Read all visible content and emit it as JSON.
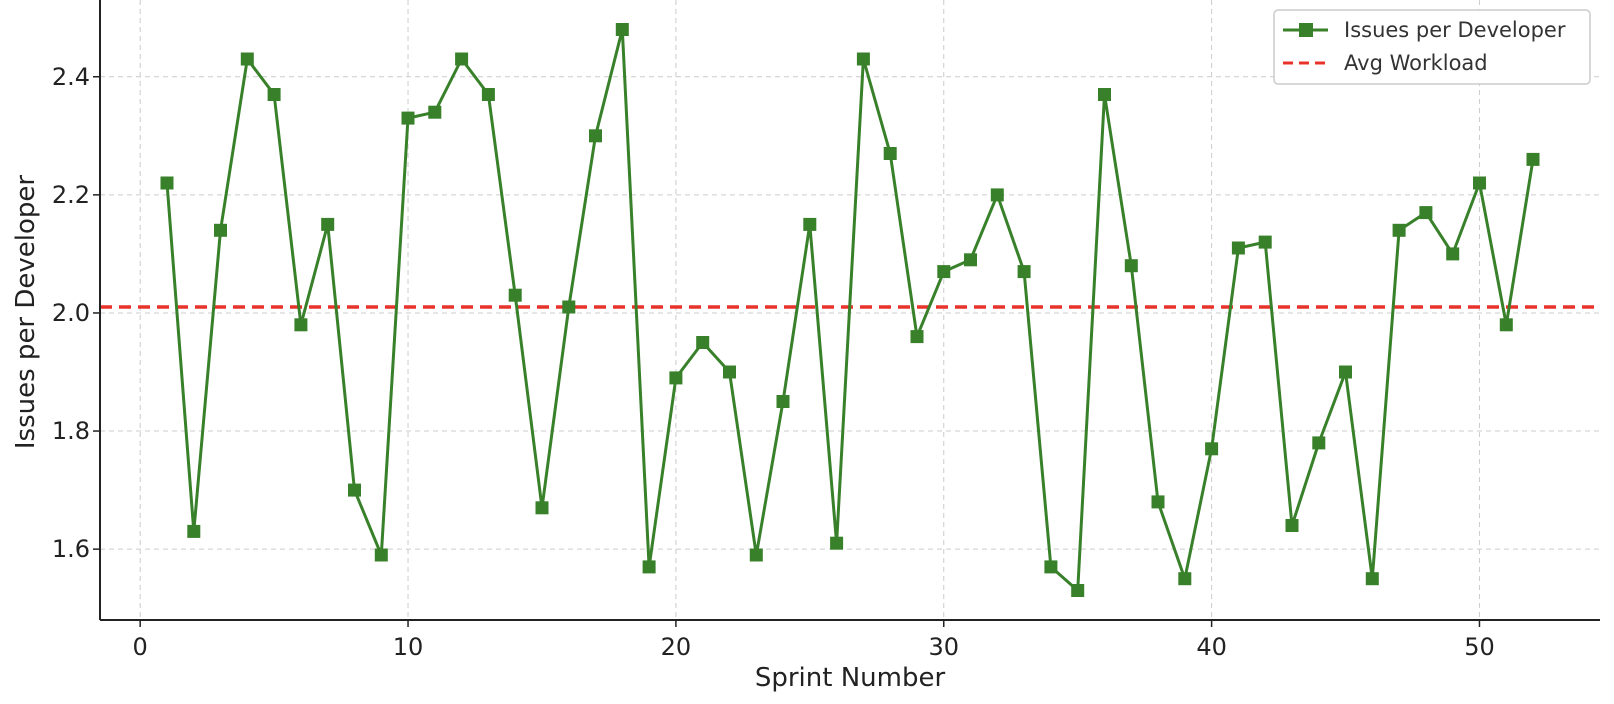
{
  "chart_data": {
    "type": "line",
    "title": "",
    "xlabel": "Sprint Number",
    "ylabel": "Issues per Developer",
    "xlim": [
      -1.5,
      54.5
    ],
    "ylim": [
      1.48,
      2.53
    ],
    "x_ticks": [
      0,
      10,
      20,
      30,
      40,
      50
    ],
    "y_ticks": [
      1.6,
      1.8,
      2.0,
      2.2,
      2.4
    ],
    "x_tick_labels": [
      "0",
      "10",
      "20",
      "30",
      "40",
      "50"
    ],
    "y_tick_labels": [
      "1.6",
      "1.8",
      "2.0",
      "2.2",
      "2.4"
    ],
    "grid": true,
    "legend_position": "top-right",
    "series": [
      {
        "name": "Issues per Developer",
        "color": "#38812a",
        "marker": "square",
        "x": [
          1,
          2,
          3,
          4,
          5,
          6,
          7,
          8,
          9,
          10,
          11,
          12,
          13,
          14,
          15,
          16,
          17,
          18,
          19,
          20,
          21,
          22,
          23,
          24,
          25,
          26,
          27,
          28,
          29,
          30,
          31,
          32,
          33,
          34,
          35,
          36,
          37,
          38,
          39,
          40,
          41,
          42,
          43,
          44,
          45,
          46,
          47,
          48,
          49,
          50,
          51,
          52
        ],
        "y": [
          2.22,
          1.63,
          2.14,
          2.43,
          2.37,
          1.98,
          2.15,
          1.7,
          1.59,
          2.33,
          2.34,
          2.43,
          2.37,
          2.03,
          1.67,
          2.01,
          2.3,
          2.48,
          1.57,
          1.89,
          1.95,
          1.9,
          1.59,
          1.85,
          2.15,
          1.61,
          2.43,
          2.27,
          1.96,
          2.07,
          2.09,
          2.2,
          2.07,
          1.57,
          1.53,
          2.37,
          2.08,
          1.68,
          1.55,
          1.77,
          2.11,
          2.12,
          1.64,
          1.78,
          1.9,
          1.55,
          2.14,
          2.17,
          2.1,
          2.22,
          1.98,
          2.26
        ]
      }
    ],
    "reference_lines": [
      {
        "name": "Avg Workload",
        "y": 2.01,
        "color": "#e8332a",
        "style": "dashed"
      }
    ]
  }
}
